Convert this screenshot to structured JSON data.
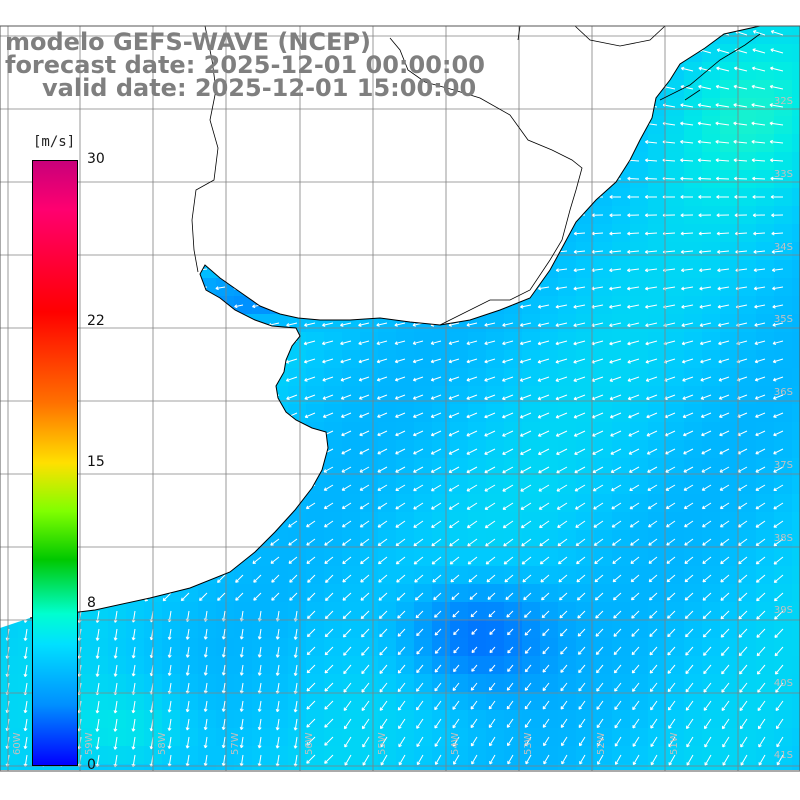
{
  "title": {
    "line1": "modelo GEFS-WAVE (NCEP)",
    "line2": "forecast date: 2025-12-01 00:00:00",
    "line3": "valid date: 2025-12-01 15:00:00"
  },
  "colorbar": {
    "unit": "[m/s]",
    "ticks": [
      "30",
      "22",
      "15",
      "8",
      "0"
    ],
    "tick_values": [
      30,
      22,
      15,
      8,
      0
    ],
    "min": 0,
    "max": 30
  },
  "map": {
    "lat_labels": [
      "32S",
      "33S",
      "34S",
      "35S",
      "36S",
      "37S",
      "38S",
      "39S",
      "40S",
      "41S"
    ],
    "lon_labels": [
      "60W",
      "59W",
      "58W",
      "57W",
      "56W",
      "55W",
      "54W",
      "53W",
      "52W",
      "51W"
    ],
    "colors": {
      "land": "#ffffff",
      "grid": "#808080",
      "coast": "#000000",
      "arrow": "#ffffff"
    }
  }
}
